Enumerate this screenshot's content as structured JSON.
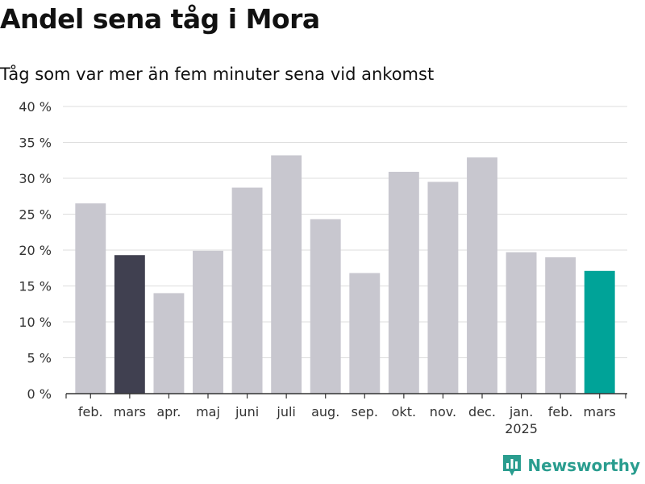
{
  "title": "Andel sena tåg i Mora",
  "subtitle": "Tåg som var mer än fem minuter sena vid ankomst",
  "brand": "Newsworthy",
  "chart_data": {
    "type": "bar",
    "categories": [
      "feb.",
      "mars",
      "apr.",
      "maj",
      "juni",
      "juli",
      "aug.",
      "sep.",
      "okt.",
      "nov.",
      "dec.",
      "jan.",
      "feb.",
      "mars"
    ],
    "year_labels": [
      "",
      "",
      "",
      "",
      "",
      "",
      "",
      "",
      "",
      "",
      "",
      "2025",
      "",
      ""
    ],
    "values": [
      26.5,
      19.3,
      14.0,
      19.9,
      28.7,
      33.2,
      24.3,
      16.8,
      30.9,
      29.5,
      32.9,
      19.7,
      19.0,
      17.1
    ],
    "colors": [
      "#c8c7cf",
      "#404050",
      "#c8c7cf",
      "#c8c7cf",
      "#c8c7cf",
      "#c8c7cf",
      "#c8c7cf",
      "#c8c7cf",
      "#c8c7cf",
      "#c8c7cf",
      "#c8c7cf",
      "#c8c7cf",
      "#c8c7cf",
      "#00a398"
    ],
    "ylim": [
      0,
      40
    ],
    "yticks": [
      0,
      5,
      10,
      15,
      20,
      25,
      30,
      35,
      40
    ],
    "ytick_suffix": " %",
    "grid": true
  }
}
